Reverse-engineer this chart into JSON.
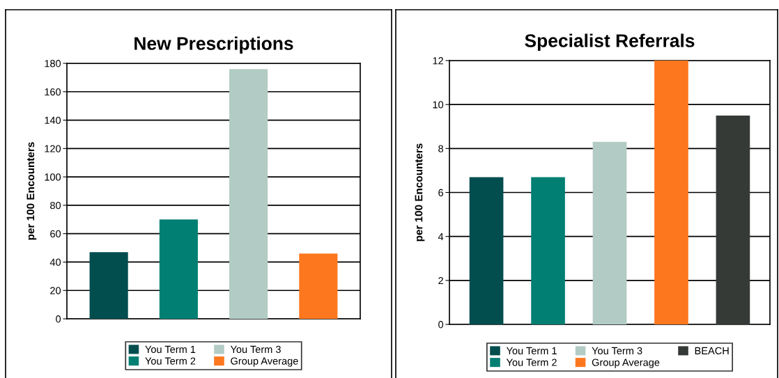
{
  "chart_data": [
    {
      "type": "bar",
      "title": "New Prescriptions",
      "ylabel": "per 100 Encounters",
      "categories": [
        null,
        null,
        null,
        null
      ],
      "series": [
        {
          "name": "You Term 1",
          "color": "#024d4e",
          "values": [
            47,
            null,
            null,
            null
          ]
        },
        {
          "name": "You Term 2",
          "color": "#027f73",
          "values": [
            null,
            70,
            null,
            null
          ]
        },
        {
          "name": "You Term 3",
          "color": "#b2cbc4",
          "values": [
            null,
            null,
            176,
            null
          ]
        },
        {
          "name": "Group Average",
          "color": "#fd771e",
          "values": [
            null,
            null,
            null,
            46
          ]
        }
      ],
      "ylim": [
        0,
        180
      ],
      "yticks": [
        0,
        20,
        40,
        60,
        80,
        100,
        120,
        140,
        160,
        180
      ],
      "grid": "y",
      "legend": "bottom"
    },
    {
      "type": "bar",
      "title": "Specialist Referrals",
      "ylabel": "per 100 Encounters",
      "categories": [
        null,
        null,
        null,
        null,
        null
      ],
      "series": [
        {
          "name": "You Term 1",
          "color": "#024d4e",
          "values": [
            6.7,
            null,
            null,
            null,
            null
          ]
        },
        {
          "name": "You Term 2",
          "color": "#027f73",
          "values": [
            null,
            6.7,
            null,
            null,
            null
          ]
        },
        {
          "name": "You Term 3",
          "color": "#b2cbc4",
          "values": [
            null,
            null,
            8.3,
            null,
            null
          ]
        },
        {
          "name": "Group Average",
          "color": "#fd771e",
          "values": [
            null,
            null,
            null,
            12,
            null
          ]
        },
        {
          "name": "BEACH",
          "color": "#363a37",
          "values": [
            null,
            null,
            null,
            null,
            9.5
          ]
        }
      ],
      "ylim": [
        0,
        12
      ],
      "yticks": [
        0,
        2,
        4,
        6,
        8,
        10,
        12
      ],
      "grid": "y",
      "legend": "bottom"
    }
  ]
}
